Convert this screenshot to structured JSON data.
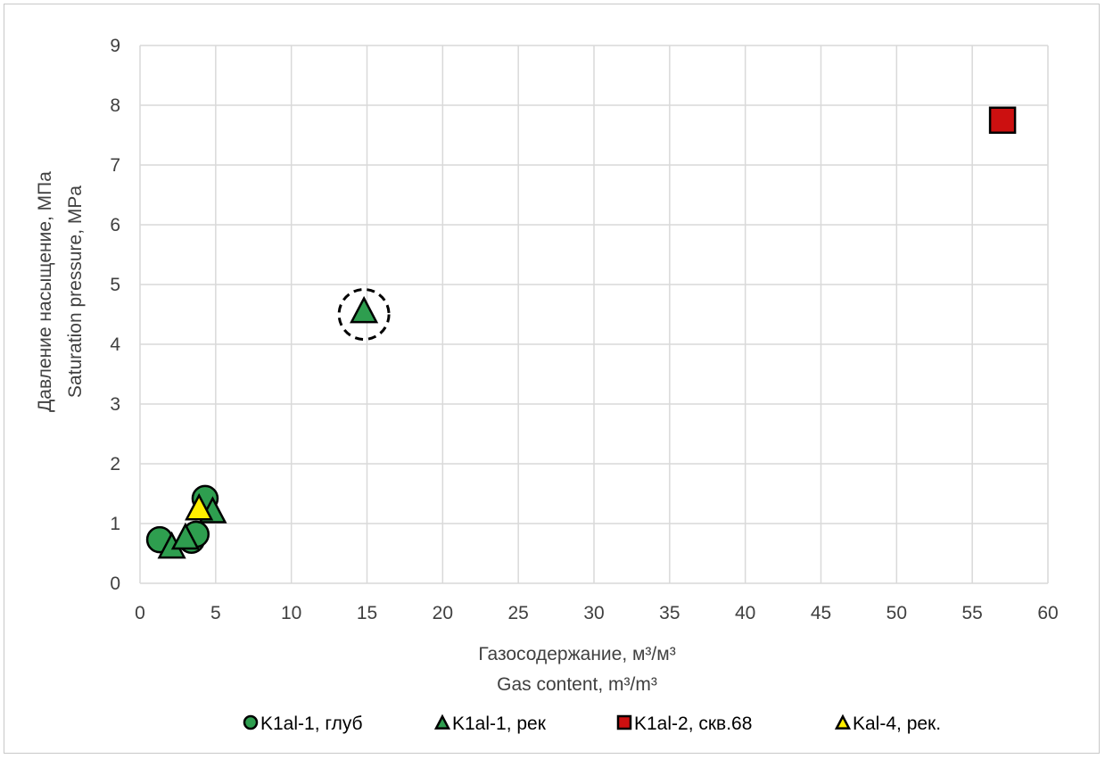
{
  "chart_data": {
    "type": "scatter",
    "xlabel_ru": "Газосодержание, м³/м³",
    "xlabel_en": "Gas content, m³/m³",
    "ylabel_ru": "Давление насыщение, МПа",
    "ylabel_en": "Saturation pressure, MPa",
    "xlim": [
      0,
      60
    ],
    "ylim": [
      0,
      9
    ],
    "x_ticks": [
      0,
      5,
      10,
      15,
      20,
      25,
      30,
      35,
      40,
      45,
      50,
      55,
      60
    ],
    "y_ticks": [
      0,
      1,
      2,
      3,
      4,
      5,
      6,
      7,
      8,
      9
    ],
    "grid": true,
    "legend_position": "bottom",
    "series": [
      {
        "name": "K1al-1, глуб",
        "marker": "circle",
        "color": "#2e9e4f",
        "points": [
          [
            1.3,
            0.73
          ],
          [
            4.3,
            1.42
          ],
          [
            3.4,
            0.72
          ],
          [
            3.7,
            0.82
          ]
        ]
      },
      {
        "name": "K1al-1, рек",
        "marker": "triangle",
        "color": "#2e9e4f",
        "points": [
          [
            2.1,
            0.63
          ],
          [
            3.0,
            0.78
          ],
          [
            4.8,
            1.22
          ],
          [
            14.8,
            4.57
          ]
        ]
      },
      {
        "name": "K1al-2, скв.68",
        "marker": "square",
        "color": "#cc1010",
        "points": [
          [
            57.0,
            7.75
          ]
        ]
      },
      {
        "name": "Kal-4, рек.",
        "marker": "triangle",
        "color": "#ffee00",
        "points": [
          [
            3.9,
            1.27
          ]
        ]
      }
    ],
    "annotations": [
      {
        "type": "dashed-circle",
        "x": 14.8,
        "y": 4.5
      }
    ]
  }
}
